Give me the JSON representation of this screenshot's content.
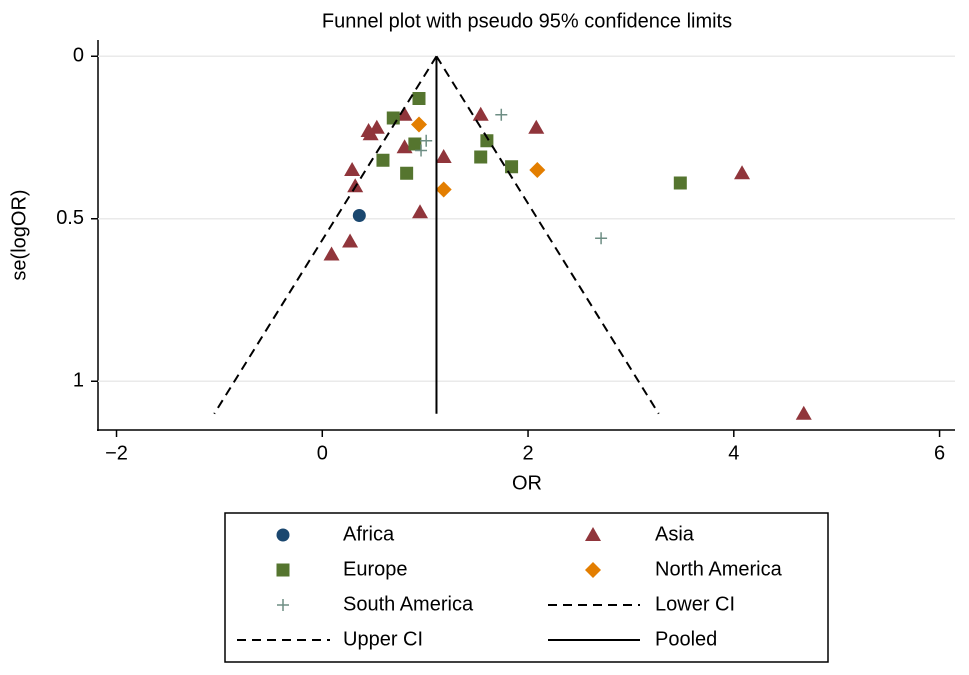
{
  "chart_data": {
    "type": "scatter",
    "title": "Funnel plot with pseudo 95% confidence limits",
    "x_label": "OR",
    "y_label": "se(logOR)",
    "xlim": [
      -2.18,
      6.15
    ],
    "ylim": [
      -0.05,
      1.15
    ],
    "y_reversed": true,
    "xticks": [
      {
        "value": -2,
        "label": "−2"
      },
      0,
      2,
      4,
      6
    ],
    "yticks": [
      0,
      0.5,
      1
    ],
    "grid": true,
    "series": [
      {
        "name": "Africa",
        "color": "#1a476f",
        "marker": "circle",
        "x": [
          0.36
        ],
        "y": [
          0.49
        ]
      },
      {
        "name": "Asia",
        "color": "#90353b",
        "marker": "triangle",
        "x": [
          0.09,
          0.27,
          0.32,
          0.29,
          0.47,
          0.53,
          0.45,
          0.8,
          0.8,
          0.95,
          1.18,
          1.54,
          2.08,
          4.08,
          4.68
        ],
        "y": [
          0.61,
          0.57,
          0.4,
          0.35,
          0.24,
          0.22,
          0.23,
          0.18,
          0.28,
          0.48,
          0.31,
          0.18,
          0.22,
          0.36,
          1.1
        ]
      },
      {
        "name": "Europe",
        "color": "#55752f",
        "marker": "square",
        "x": [
          0.69,
          0.94,
          0.59,
          0.9,
          0.82,
          1.54,
          1.6,
          1.84,
          3.48
        ],
        "y": [
          0.19,
          0.13,
          0.32,
          0.27,
          0.36,
          0.31,
          0.26,
          0.34,
          0.39
        ]
      },
      {
        "name": "North America",
        "color": "#e37e00",
        "marker": "diamond",
        "x": [
          0.94,
          1.18,
          2.09
        ],
        "y": [
          0.21,
          0.41,
          0.35
        ]
      },
      {
        "name": "South America",
        "color": "#6e8e84",
        "marker": "plus",
        "x": [
          1.01,
          0.96,
          1.74,
          2.71
        ],
        "y": [
          0.26,
          0.29,
          0.18,
          0.56
        ]
      },
      {
        "name": "Lower CI",
        "color": "#000000",
        "marker": "dashed-line",
        "x": [
          1.11,
          -1.05
        ],
        "y": [
          0,
          1.1
        ]
      },
      {
        "name": "Upper CI",
        "color": "#000000",
        "marker": "dashed-line",
        "x": [
          1.11,
          3.27
        ],
        "y": [
          0,
          1.1
        ]
      },
      {
        "name": "Pooled",
        "color": "#000000",
        "marker": "solid-line",
        "x": [
          1.11,
          1.11
        ],
        "y": [
          0,
          1.1
        ]
      }
    ]
  }
}
